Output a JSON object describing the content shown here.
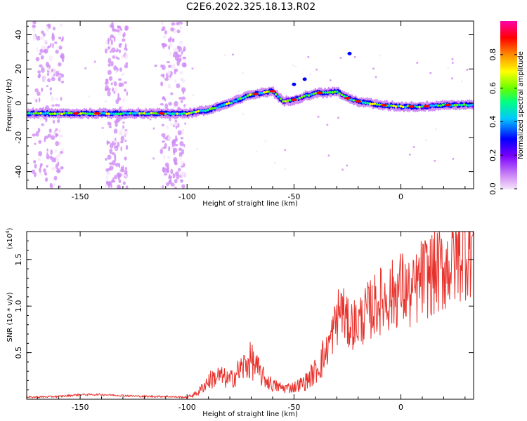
{
  "title": "C2E6.2022.325.18.13.R02",
  "colors": {
    "snr_line": "#e8302a",
    "frame": "#000000",
    "colormap": [
      "#f2d9f7",
      "#7a00ff",
      "#0000ff",
      "#00c8ff",
      "#00ff7f",
      "#80ff00",
      "#ffff00",
      "#ff8000",
      "#ff0000",
      "#ff00a0"
    ]
  },
  "chart_data": [
    {
      "type": "heatmap",
      "title": "C2E6.2022.325.18.13.R02",
      "xlabel": "Height of straight line (km)",
      "ylabel": "Frequency (Hz)",
      "xlim": [
        -175,
        34
      ],
      "ylim": [
        -50,
        48
      ],
      "xticks": [
        -150,
        -100,
        -50,
        0
      ],
      "xtick_labels": [
        "-150",
        "-100",
        "-50",
        "0"
      ],
      "yticks": [
        -40,
        -20,
        0,
        20,
        40
      ],
      "ytick_labels": [
        "-40",
        "-20",
        "0",
        "20",
        "40"
      ],
      "colorbar": {
        "label": "Normalized spectral amplitude",
        "range": [
          0,
          1
        ],
        "ticks": [
          0.0,
          0.2,
          0.4,
          0.6,
          0.8
        ],
        "tick_labels": [
          "0.0",
          "0.2",
          "0.4",
          "0.6",
          "0.8"
        ]
      },
      "ridge": {
        "x": [
          -175,
          -150,
          -125,
          -100,
          -90,
          -80,
          -70,
          -60,
          -55,
          -50,
          -45,
          -40,
          -35,
          -30,
          -25,
          -20,
          -10,
          0,
          10,
          20,
          34
        ],
        "frequency": [
          -6,
          -6,
          -6,
          -6,
          -4,
          0,
          5,
          7,
          1,
          2,
          4,
          6,
          6,
          7,
          3,
          1,
          -1,
          -2,
          -2,
          -1,
          -1
        ]
      }
    },
    {
      "type": "line",
      "xlabel": "Height of straight line (km)",
      "ylabel": "SNR (10 * v/v)",
      "y_scale_label": "(x10",
      "y_scale_exp": "4",
      "y_scale_suffix": ")",
      "xlim": [
        -175,
        34
      ],
      "ylim": [
        0,
        1.8
      ],
      "xticks": [
        -150,
        -100,
        -50,
        0
      ],
      "xtick_labels": [
        "-150",
        "-100",
        "-50",
        "0"
      ],
      "yticks": [
        0.5,
        1.0,
        1.5
      ],
      "ytick_labels": [
        "0.5",
        "1.0",
        "1.5"
      ],
      "series": [
        {
          "x": [
            -175,
            -160,
            -150,
            -140,
            -130,
            -120,
            -110,
            -100,
            -95,
            -90,
            -85,
            -80,
            -75,
            -70,
            -65,
            -60,
            -55,
            -50,
            -45,
            -40,
            -35,
            -30,
            -28,
            -25,
            -20,
            -15,
            -10,
            -5,
            0,
            5,
            10,
            15,
            20,
            25,
            30,
            34
          ],
          "values": [
            0.02,
            0.03,
            0.05,
            0.05,
            0.04,
            0.03,
            0.03,
            0.02,
            0.07,
            0.2,
            0.25,
            0.2,
            0.32,
            0.42,
            0.25,
            0.15,
            0.12,
            0.13,
            0.18,
            0.3,
            0.5,
            0.85,
            1.0,
            0.8,
            0.82,
            0.95,
            1.05,
            1.1,
            1.2,
            1.1,
            1.3,
            1.35,
            1.4,
            1.5,
            1.62,
            1.68
          ]
        }
      ]
    }
  ]
}
